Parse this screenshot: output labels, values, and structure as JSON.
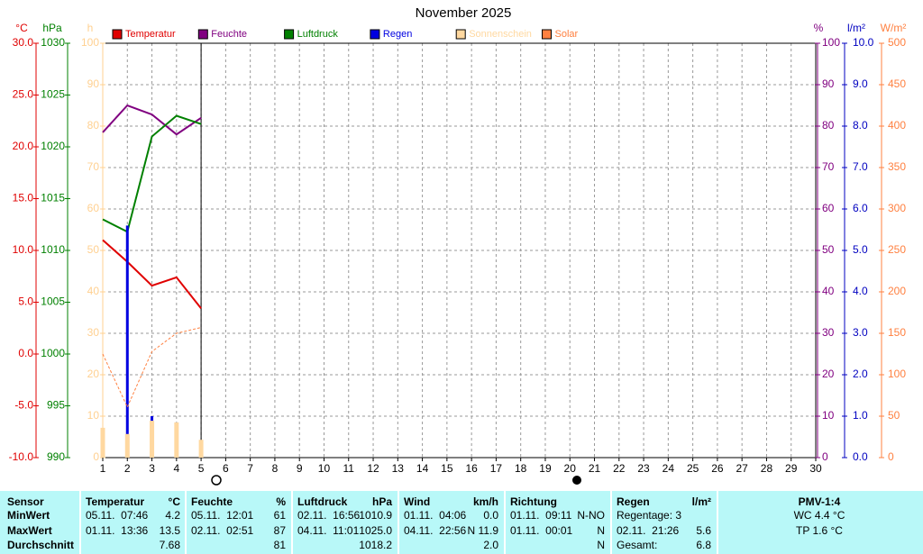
{
  "chart_data": {
    "type": "combo",
    "title": "November 2025",
    "x": [
      1,
      2,
      3,
      4,
      5
    ],
    "xlim": [
      1,
      30
    ],
    "xticks": [
      1,
      2,
      3,
      4,
      5,
      6,
      7,
      8,
      9,
      10,
      11,
      12,
      13,
      14,
      15,
      16,
      17,
      18,
      19,
      20,
      21,
      22,
      23,
      24,
      25,
      26,
      27,
      28,
      29,
      30
    ],
    "grid": true,
    "axes": [
      {
        "label": "°C",
        "color": "#e00000",
        "lim": [
          -10,
          30
        ],
        "ticks": [
          {
            "value": -10,
            "label": "-10.0"
          },
          {
            "value": -5,
            "label": "-5.0"
          },
          {
            "value": 0,
            "label": "0.0"
          },
          {
            "value": 5,
            "label": "5.0"
          },
          {
            "value": 10,
            "label": "10.0"
          },
          {
            "value": 15,
            "label": "15.0"
          },
          {
            "value": 20,
            "label": "20.0"
          },
          {
            "value": 25,
            "label": "25.0"
          },
          {
            "value": 30,
            "label": "30.0"
          }
        ]
      },
      {
        "label": "hPa",
        "color": "#008000",
        "lim": [
          990,
          1030
        ],
        "ticks": [
          990,
          995,
          1000,
          1005,
          1010,
          1015,
          1020,
          1025,
          1030
        ]
      },
      {
        "label": "h",
        "color": "#ffd090",
        "lim": [
          0,
          100
        ],
        "ticks": [
          0,
          10,
          20,
          30,
          40,
          50,
          60,
          70,
          80,
          90,
          100
        ]
      },
      {
        "label": "%",
        "color": "#800080",
        "lim": [
          0,
          100
        ],
        "ticks": [
          0,
          10,
          20,
          30,
          40,
          50,
          60,
          70,
          80,
          90,
          100
        ]
      },
      {
        "label": "l/m²",
        "color": "#0000c0",
        "lim": [
          0,
          10
        ],
        "ticks": [
          {
            "value": 0,
            "label": "0.0"
          },
          {
            "value": 1,
            "label": "1.0"
          },
          {
            "value": 2,
            "label": "2.0"
          },
          {
            "value": 3,
            "label": "3.0"
          },
          {
            "value": 4,
            "label": "4.0"
          },
          {
            "value": 5,
            "label": "5.0"
          },
          {
            "value": 6,
            "label": "6.0"
          },
          {
            "value": 7,
            "label": "7.0"
          },
          {
            "value": 8,
            "label": "8.0"
          },
          {
            "value": 9,
            "label": "9.0"
          },
          {
            "value": 10,
            "label": "10.0"
          }
        ]
      },
      {
        "label": "W/m²",
        "color": "#ff8040",
        "lim": [
          0,
          500
        ],
        "ticks": [
          0,
          50,
          100,
          150,
          200,
          250,
          300,
          350,
          400,
          450,
          500
        ]
      }
    ],
    "series": [
      {
        "name": "Temperatur",
        "type": "line",
        "axis": "°C",
        "color": "#e00000",
        "values": [
          11.0,
          8.9,
          6.6,
          7.4,
          4.4
        ]
      },
      {
        "name": "Feuchte",
        "type": "line",
        "axis": "%",
        "color": "#800080",
        "values": [
          78.5,
          85,
          82.8,
          78,
          82
        ]
      },
      {
        "name": "Luftdruck",
        "type": "line",
        "axis": "hPa",
        "color": "#008000",
        "values": [
          1013.0,
          1011.8,
          1021.0,
          1023.0,
          1022.2
        ]
      },
      {
        "name": "Regen",
        "type": "bar",
        "axis": "l/m²",
        "color": "#0000e0",
        "values": [
          0,
          5.6,
          1.0,
          0,
          0.2
        ]
      },
      {
        "name": "Sonnenschein",
        "type": "bar",
        "axis": "h",
        "color": "#ffd8a0",
        "values": [
          7.2,
          5.7,
          8.9,
          8.5,
          4.3
        ]
      },
      {
        "name": "Solar",
        "type": "line",
        "dashed": true,
        "axis": "W/m²",
        "color": "#ff8040",
        "values": [
          125,
          61,
          128,
          150,
          157
        ]
      }
    ]
  },
  "table": {
    "row_labels": [
      "Sensor",
      "MinWert",
      "MaxWert",
      "Durchschnitt"
    ],
    "groups": [
      {
        "title": "Temperatur",
        "unit": "°C",
        "rows": [
          [
            "05.11.  07:46",
            "4.2"
          ],
          [
            "01.11.  13:36",
            "13.5"
          ],
          [
            null,
            "7.68"
          ]
        ]
      },
      {
        "title": "Feuchte",
        "unit": "%",
        "rows": [
          [
            "05.11.  12:01",
            "61"
          ],
          [
            "02.11.  02:51",
            "87"
          ],
          [
            null,
            "81"
          ]
        ]
      },
      {
        "title": "Luftdruck",
        "unit": "hPa",
        "rows": [
          [
            "02.11.  16:56",
            "1010.9"
          ],
          [
            "04.11.  11:01",
            "1025.0"
          ],
          [
            null,
            "1018.2"
          ]
        ]
      },
      {
        "title": "Wind",
        "unit": "km/h",
        "rows": [
          [
            "01.11.  04:06",
            "0.0"
          ],
          [
            "04.11.  22:56",
            "N 11.9"
          ],
          [
            null,
            "2.0"
          ]
        ]
      },
      {
        "title": "Richtung",
        "unit": null,
        "rows": [
          [
            "01.11.  09:11",
            "N-NO"
          ],
          [
            "01.11.  00:01",
            "N"
          ],
          [
            null,
            "N"
          ]
        ]
      },
      {
        "title": "Regen",
        "unit": "l/m²",
        "rows": [
          [
            "Regentage: 3",
            null
          ],
          [
            "02.11.  21:26",
            "5.6"
          ],
          [
            "Gesamt:",
            "6.8"
          ]
        ]
      },
      {
        "title": "PMV-1:4",
        "unit": null,
        "rows": [
          [
            "WC 4.4 °C",
            null
          ],
          [
            "TP 1.6 °C",
            null
          ],
          [
            null,
            null
          ]
        ]
      }
    ]
  }
}
